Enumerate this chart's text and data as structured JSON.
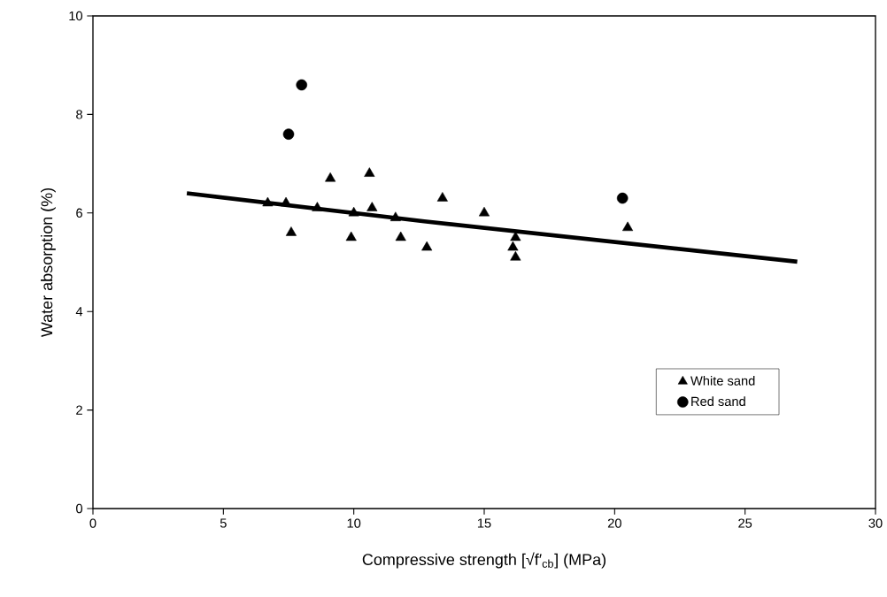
{
  "chart_data": {
    "type": "scatter",
    "xlabel": "Compressive strength [√f′$_{cb}$] (MPa)",
    "ylabel": "Water absorption (%)",
    "xlim": [
      0,
      30
    ],
    "xticks": [
      0,
      5,
      10,
      15,
      20,
      25,
      30
    ],
    "ylim": [
      0,
      10
    ],
    "yticks": [
      0,
      2,
      4,
      6,
      8,
      10
    ],
    "grid": false,
    "legend": "bottom right",
    "series": [
      {
        "name": "White sand",
        "color": "#000000",
        "marker": "triangle",
        "x": [
          6.7,
          7.4,
          7.6,
          8.6,
          9.1,
          9.9,
          10.0,
          10.6,
          10.7,
          11.6,
          11.8,
          12.8,
          13.4,
          15.0,
          16.1,
          16.2,
          16.2,
          20.5
        ],
        "values": [
          6.2,
          6.2,
          5.6,
          6.1,
          6.7,
          5.5,
          6.0,
          6.8,
          6.1,
          5.9,
          5.5,
          5.3,
          6.3,
          6.0,
          5.3,
          5.5,
          5.1,
          5.7
        ]
      },
      {
        "name": "Red sand",
        "color": "#000000",
        "marker": "circle",
        "x": [
          7.5,
          8.0,
          20.3
        ],
        "values": [
          7.6,
          8.6,
          6.3
        ]
      },
      {
        "type": "line",
        "color": "#000000",
        "marker": "none",
        "line_style": "solid",
        "x": [
          3.6,
          12.7,
          27.0
        ],
        "values": [
          6.4,
          5.83,
          5.01
        ]
      }
    ]
  }
}
